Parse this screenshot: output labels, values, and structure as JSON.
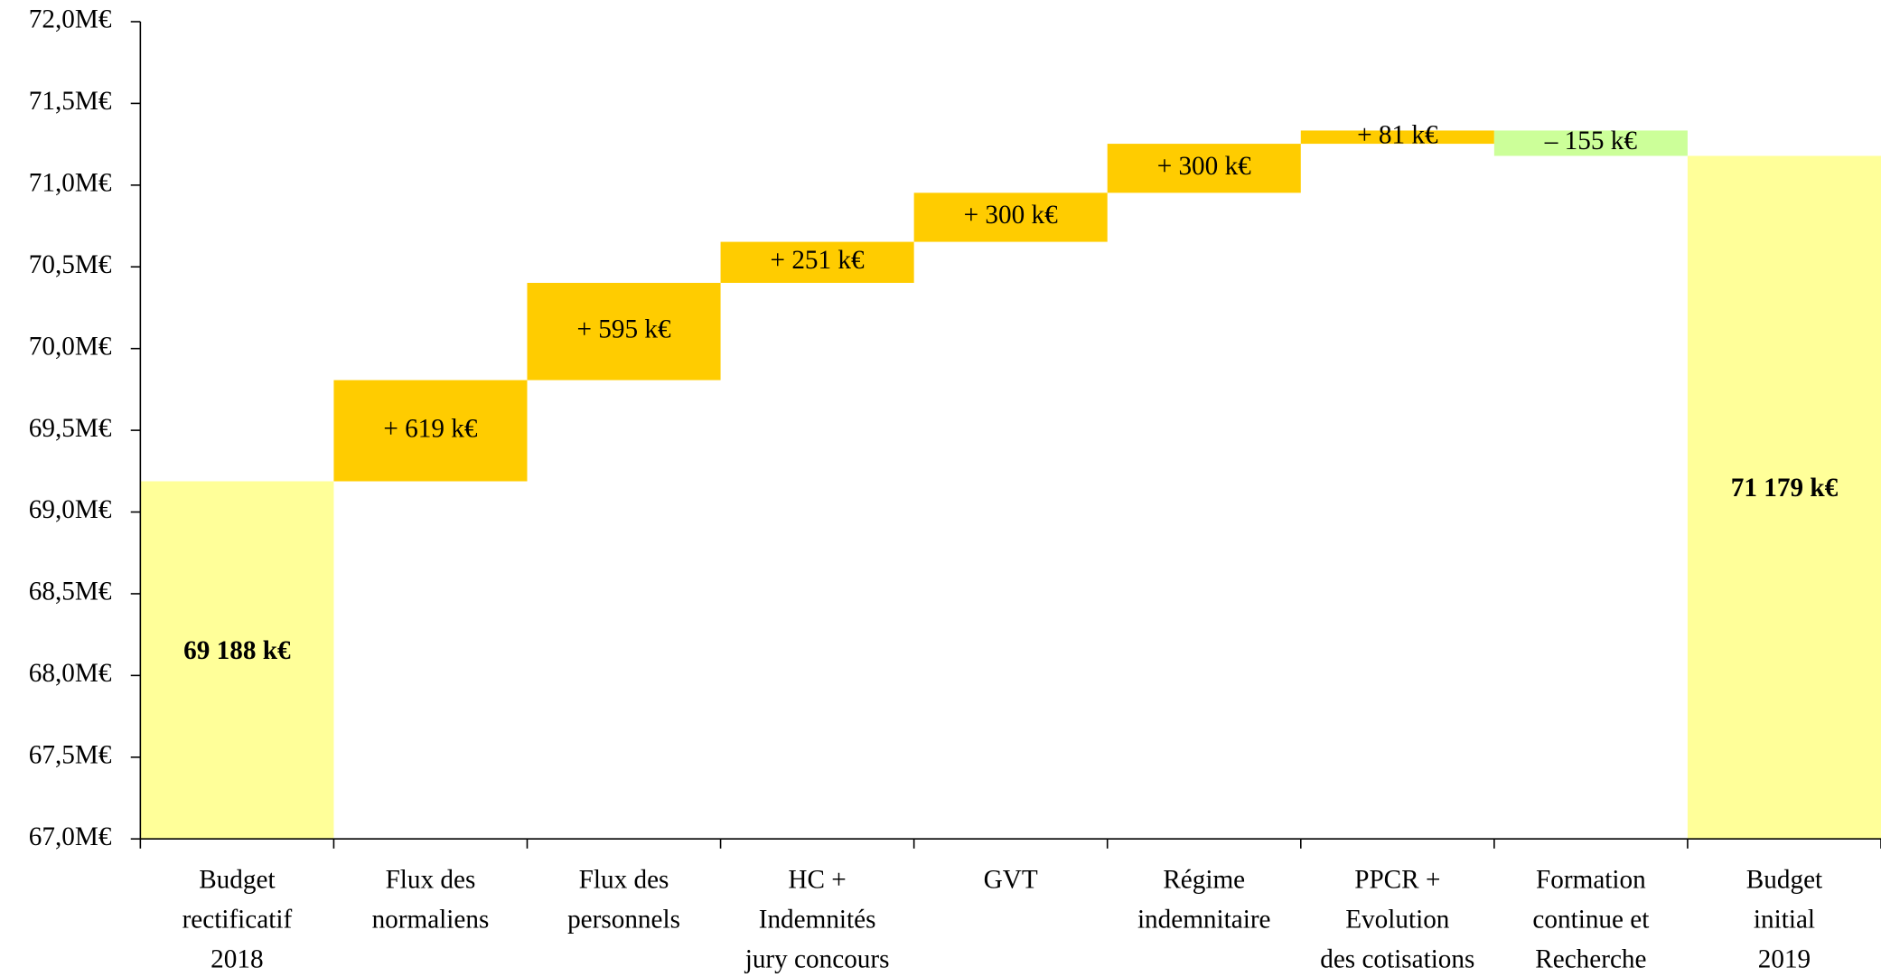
{
  "chart_data": {
    "type": "waterfall",
    "categories": [
      [
        "Budget",
        "rectificatif",
        "2018"
      ],
      [
        "Flux des",
        "normaliens"
      ],
      [
        "Flux des",
        "personnels"
      ],
      [
        "HC +",
        "Indemnités",
        "jury concours"
      ],
      [
        "GVT"
      ],
      [
        "Régime",
        "indemnitaire"
      ],
      [
        "PPCR +",
        "Evolution",
        "des cotisations"
      ],
      [
        "Formation",
        "continue et",
        "Recherche"
      ],
      [
        "Budget",
        "initial",
        "2019"
      ]
    ],
    "values": [
      69.188,
      0.619,
      0.595,
      0.251,
      0.3,
      0.3,
      0.081,
      -0.155,
      71.179
    ],
    "value_labels": [
      "69 188 k€",
      "+ 619 k€",
      "+ 595 k€",
      "+ 251 k€",
      "+ 300 k€",
      "+ 300 k€",
      "+ 81 k€",
      "– 155 k€",
      "71 179 k€"
    ],
    "colors": {
      "total": "#ffff99",
      "increase": "#ffcc00",
      "decrease": "#ccff99"
    },
    "ylim": [
      67,
      72
    ],
    "yticks": [
      {
        "value": 67,
        "label": "67,0M€"
      },
      {
        "value": 67.5,
        "label": "67,5M€"
      },
      {
        "value": 68,
        "label": "68,0M€"
      },
      {
        "value": 68.5,
        "label": "68,5M€"
      },
      {
        "value": 69,
        "label": "69,0M€"
      },
      {
        "value": 69.5,
        "label": "69,5M€"
      },
      {
        "value": 70,
        "label": "70,0M€"
      },
      {
        "value": 70.5,
        "label": "70,5M€"
      },
      {
        "value": 71,
        "label": "71,0M€"
      },
      {
        "value": 71.5,
        "label": "71,5M€"
      },
      {
        "value": 72,
        "label": "72,0M€"
      }
    ]
  }
}
